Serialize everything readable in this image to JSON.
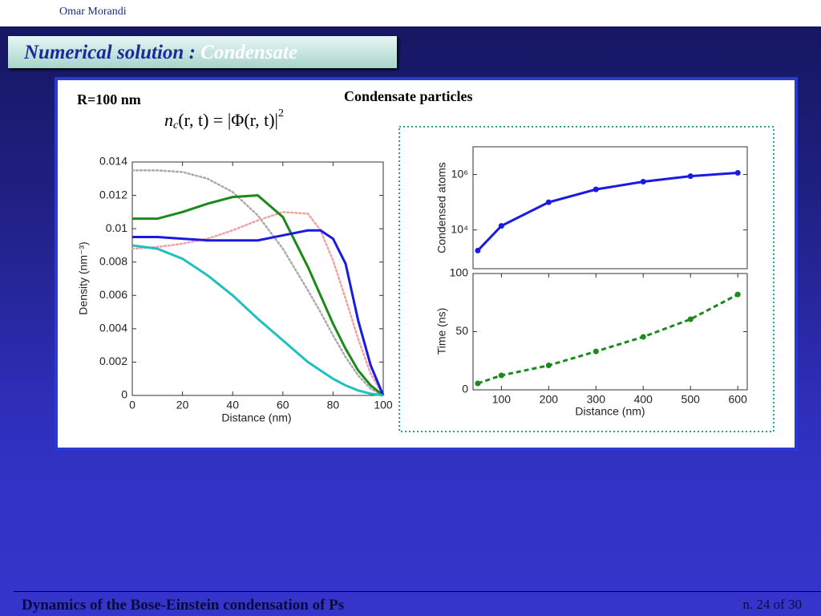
{
  "header": {
    "author": "Omar Morandi"
  },
  "slide_title": {
    "text": "Numerical solution : ",
    "highlight": "Condensate"
  },
  "radius_label": "R=100 nm",
  "panel_title": "Condensate particles",
  "formula": [
    "n",
    "c",
    "(r, t) = |Φ(r, t)|",
    "2"
  ],
  "footer": {
    "text": "Dynamics of the Bose-Einstein condensation of Ps",
    "page": "n. 24 of 30"
  },
  "chart_data": [
    {
      "type": "line",
      "x_label": "Distance (nm)",
      "y_label": "Density (nm⁻³)",
      "x": [
        0,
        10,
        20,
        30,
        40,
        50,
        60,
        70,
        75,
        80,
        85,
        90,
        95,
        100
      ],
      "xlim": [
        0,
        100
      ],
      "xticks": [
        0,
        20,
        40,
        60,
        80,
        100
      ],
      "ylim": [
        0,
        0.014
      ],
      "yticks": [
        0,
        0.002,
        0.004,
        0.006,
        0.008,
        0.01,
        0.012,
        0.014
      ],
      "series": [
        {
          "color": "#aaaaaa",
          "linestyle": "dotted",
          "values": [
            0.0135,
            0.0135,
            0.0134,
            0.013,
            0.0122,
            0.0108,
            0.0088,
            0.0063,
            0.005,
            0.0036,
            0.0023,
            0.0012,
            0.0004,
            0
          ]
        },
        {
          "color": "#f4a0a0",
          "linestyle": "dotted",
          "values": [
            0.0088,
            0.0089,
            0.0091,
            0.0094,
            0.0099,
            0.0105,
            0.011,
            0.0109,
            0.0099,
            0.0081,
            0.0058,
            0.0034,
            0.0013,
            0
          ]
        },
        {
          "color": "#1a8a1a",
          "linestyle": "solid",
          "values": [
            0.0106,
            0.0106,
            0.011,
            0.0115,
            0.0119,
            0.012,
            0.0107,
            0.0077,
            0.006,
            0.0043,
            0.0028,
            0.0015,
            0.0006,
            0
          ]
        },
        {
          "color": "#1a1ae0",
          "linestyle": "solid",
          "values": [
            0.0095,
            0.0095,
            0.0094,
            0.0093,
            0.0093,
            0.0093,
            0.0096,
            0.0099,
            0.0099,
            0.0094,
            0.0079,
            0.0045,
            0.0018,
            0
          ]
        },
        {
          "color": "#20c0c0",
          "linestyle": "solid",
          "values": [
            0.009,
            0.0088,
            0.0082,
            0.0072,
            0.006,
            0.0046,
            0.0033,
            0.002,
            0.0015,
            0.001,
            0.0006,
            0.0003,
            0.0001,
            0
          ]
        }
      ]
    },
    {
      "type": "line",
      "y_label": "Condensed atoms",
      "log_y": true,
      "marker": true,
      "x": [
        50,
        100,
        200,
        300,
        400,
        500,
        600
      ],
      "xlim": [
        40,
        620
      ],
      "ylim": [
        400,
        10000000
      ],
      "yticks": [
        {
          "value": 10000,
          "label": "10⁴"
        },
        {
          "value": 1000000,
          "label": "10⁶"
        }
      ],
      "series": [
        {
          "color": "#1a1ae0",
          "linestyle": "solid",
          "values": [
            1800,
            14000,
            100000,
            290000,
            550000,
            870000,
            1150000
          ]
        }
      ]
    },
    {
      "type": "line",
      "x_label": "Distance (nm)",
      "y_label": "Time (ns)",
      "marker": true,
      "x": [
        50,
        100,
        200,
        300,
        400,
        500,
        600
      ],
      "xlim": [
        40,
        620
      ],
      "xticks": [
        100,
        200,
        300,
        400,
        500,
        600
      ],
      "ylim": [
        0,
        100
      ],
      "yticks": [
        0,
        50,
        100
      ],
      "series": [
        {
          "color": "#1a8a1a",
          "linestyle": "dashed",
          "values": [
            5.5,
            12.4,
            21,
            33,
            45.5,
            60.7,
            82
          ]
        }
      ]
    }
  ]
}
